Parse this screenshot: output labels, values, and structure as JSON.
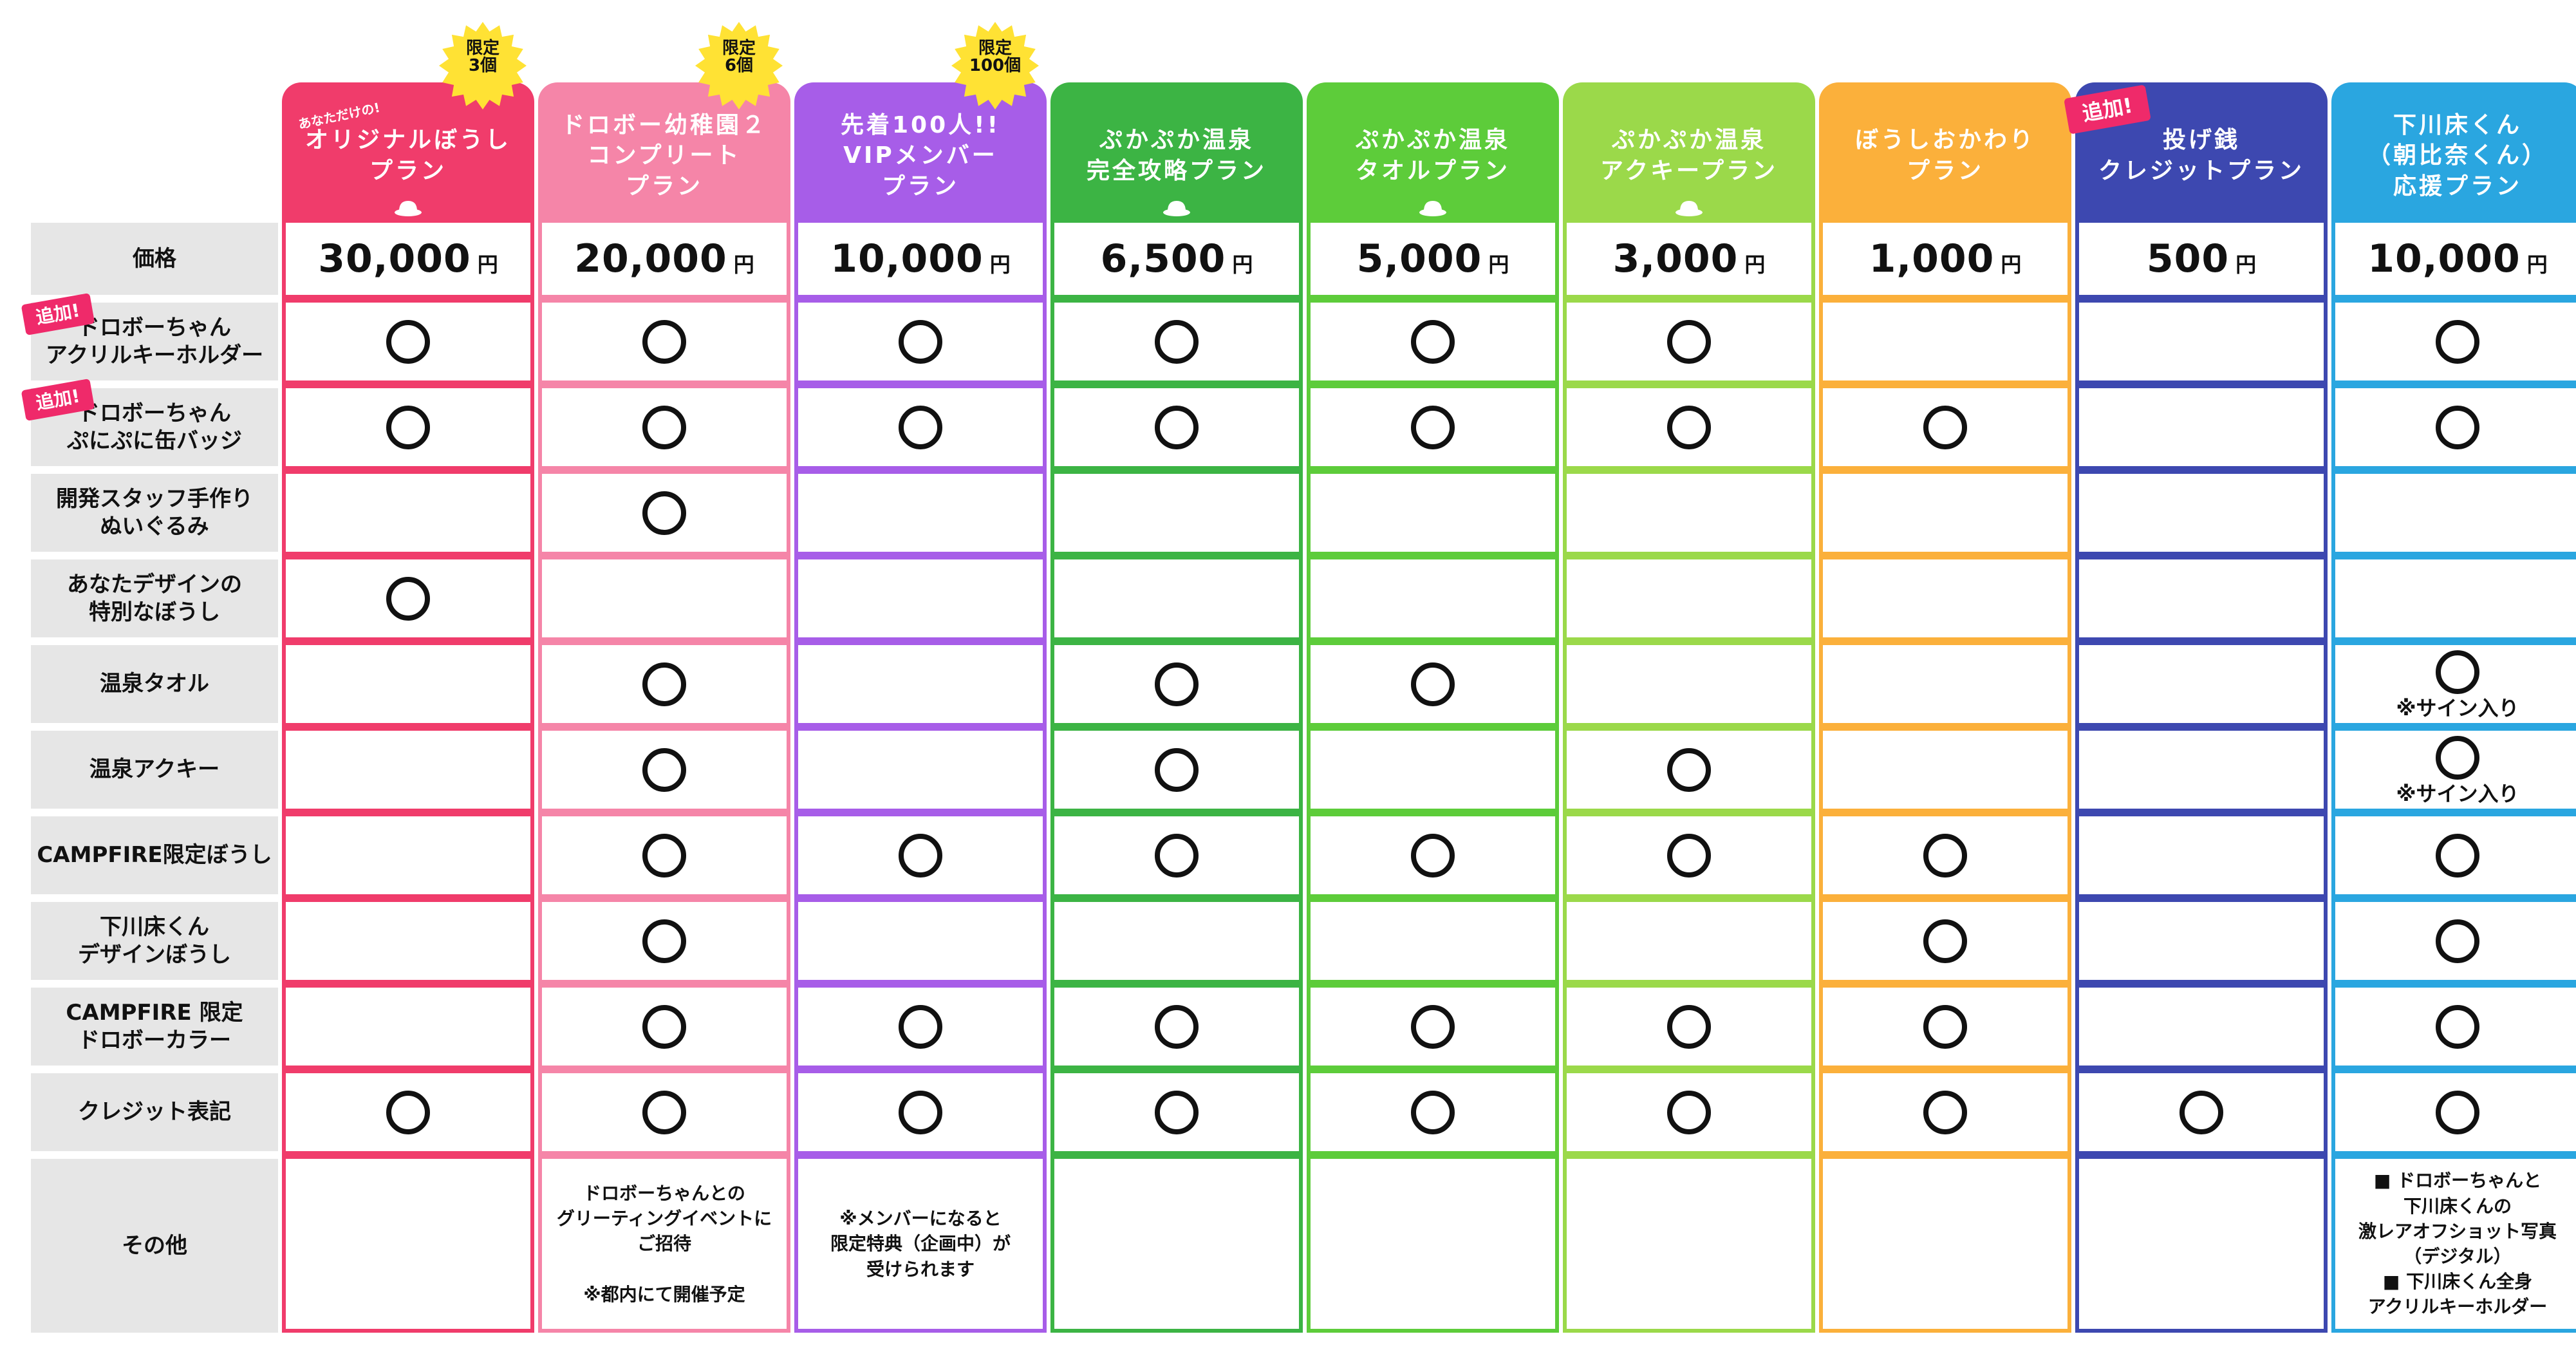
{
  "plans": [
    {
      "key": "p1",
      "title": "オリジナルぼうし\nプラン",
      "subtitle": "あなただけの!",
      "price": "30,000",
      "color": "#f03c6b",
      "burst": "限定\n3個",
      "icon": "cap-icon"
    },
    {
      "key": "p2",
      "title": "ドロボー幼稚園２\nコンプリート\nプラン",
      "price": "20,000",
      "color": "#f585a8",
      "burst": "限定\n6個"
    },
    {
      "key": "p3",
      "title": "先着100人!!\nVIPメンバー\nプラン",
      "price": "10,000",
      "color": "#a75de8",
      "burst": "限定\n100個"
    },
    {
      "key": "p4",
      "title": "ぷかぷか温泉\n完全攻略プラン",
      "price": "6,500",
      "color": "#3cb444",
      "icon": "onsen-icon"
    },
    {
      "key": "p5",
      "title": "ぷかぷか温泉\nタオルプラン",
      "price": "5,000",
      "color": "#5dcc3a",
      "icon": "onsen-icon"
    },
    {
      "key": "p6",
      "title": "ぷかぷか温泉\nアクキープラン",
      "price": "3,000",
      "color": "#9bd94a",
      "icon": "onsen-icon"
    },
    {
      "key": "p7",
      "title": "ぼうしおかわり\nプラン",
      "price": "1,000",
      "color": "#fbb03b"
    },
    {
      "key": "p8",
      "title": "投げ銭\nクレジットプラン",
      "price": "500",
      "color": "#3d48b0",
      "flag": "追加!"
    },
    {
      "key": "p9",
      "title": "下川床くん\n（朝比奈くん）\n応援プラン",
      "price": "10,000",
      "color": "#2aa6e0"
    }
  ],
  "yen": "円",
  "price_label": "価格",
  "rows": [
    {
      "label": "ドロボーちゃん\nアクリルキーホルダー",
      "flag": "追加!",
      "marks": [
        1,
        1,
        1,
        1,
        1,
        1,
        0,
        0,
        1
      ]
    },
    {
      "label": "ドロボーちゃん\nぷにぷに缶バッジ",
      "flag": "追加!",
      "marks": [
        1,
        1,
        1,
        1,
        1,
        1,
        1,
        0,
        1
      ]
    },
    {
      "label": "開発スタッフ手作り\nぬいぐるみ",
      "marks": [
        0,
        1,
        0,
        0,
        0,
        0,
        0,
        0,
        0
      ]
    },
    {
      "label": "あなたデザインの\n特別なぼうし",
      "marks": [
        1,
        0,
        0,
        0,
        0,
        0,
        0,
        0,
        0
      ]
    },
    {
      "label": "温泉タオル",
      "marks": [
        0,
        1,
        0,
        1,
        1,
        0,
        0,
        0,
        1
      ],
      "notes": {
        "8": "※サイン入り"
      }
    },
    {
      "label": "温泉アクキー",
      "marks": [
        0,
        1,
        0,
        1,
        0,
        1,
        0,
        0,
        1
      ],
      "notes": {
        "8": "※サイン入り"
      }
    },
    {
      "label": "CAMPFIRE限定ぼうし",
      "marks": [
        0,
        1,
        1,
        1,
        1,
        1,
        1,
        0,
        1
      ]
    },
    {
      "label": "下川床くん\nデザインぼうし",
      "marks": [
        0,
        1,
        0,
        0,
        0,
        0,
        1,
        0,
        1
      ]
    },
    {
      "label": "CAMPFIRE 限定\nドロボーカラー",
      "marks": [
        0,
        1,
        1,
        1,
        1,
        1,
        1,
        0,
        1
      ]
    },
    {
      "label": "クレジット表記",
      "marks": [
        1,
        1,
        1,
        1,
        1,
        1,
        1,
        1,
        1
      ]
    }
  ],
  "other": {
    "label": "その他",
    "texts": [
      "",
      "ドロボーちゃんとの\nグリーティングイベントに\nご招待\n\n※都内にて開催予定",
      "※メンバーになると\n限定特典（企画中）が\n受けられます",
      "",
      "",
      "",
      "",
      "",
      "■ ドロボーちゃんと\n下川床くんの\n激レアオフショット写真\n（デジタル）\n■ 下川床くん全身\nアクリルキーホルダー"
    ]
  }
}
